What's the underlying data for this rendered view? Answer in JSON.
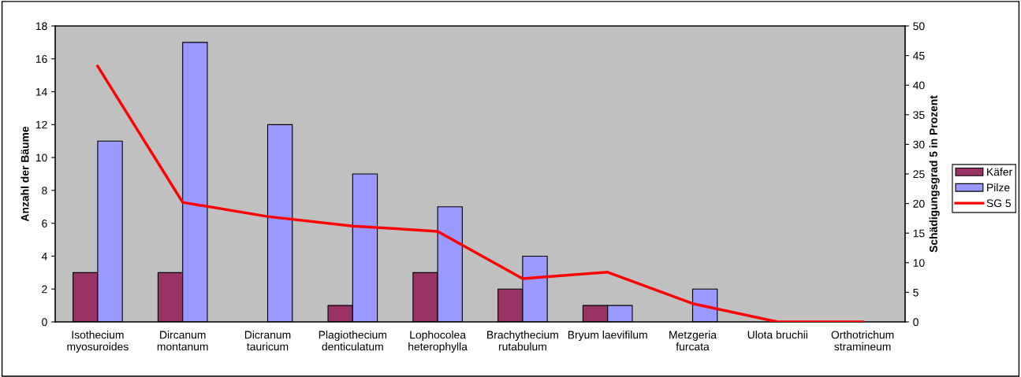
{
  "chart_data": {
    "type": "bar",
    "ylabel": "Anzahl der Bäume",
    "y2label": "Schädigungsgrad 5 in Prozent",
    "categories": [
      "Isothecium\nmyosuroides",
      "Dircanum\nmontanum",
      "Dicranum\ntauricum",
      "Plagiothecium\ndenticulatum",
      "Lophocolea\nheterophylla",
      "Brachythecium\nrutabulum",
      "Bryum laevifilum",
      "Metzgeria\nfurcata",
      "Ulota bruchii",
      "Orthotrichum\nstramineum"
    ],
    "series": [
      {
        "name": "Käfer",
        "color": "#993366",
        "values": [
          3,
          3,
          0,
          1,
          3,
          2,
          1,
          0,
          0,
          0
        ]
      },
      {
        "name": "Pilze",
        "color": "#9999ff",
        "values": [
          11,
          17,
          12,
          9,
          7,
          4,
          1,
          2,
          0,
          0
        ]
      },
      {
        "name": "SG 5",
        "type": "line",
        "axis": "y2",
        "color": "#ff0000",
        "values": [
          43.2,
          20.2,
          17.8,
          16.2,
          15.3,
          7.3,
          8.4,
          3.1,
          0,
          0
        ]
      }
    ],
    "ylim": [
      0,
      18
    ],
    "yticks": [
      0,
      2,
      4,
      6,
      8,
      10,
      12,
      14,
      16,
      18
    ],
    "y2lim": [
      0,
      50
    ],
    "y2ticks": [
      0,
      5,
      10,
      15,
      20,
      25,
      30,
      35,
      40,
      45,
      50
    ],
    "grid": false,
    "legend": "right",
    "marker": "none",
    "line_style": "solid"
  }
}
